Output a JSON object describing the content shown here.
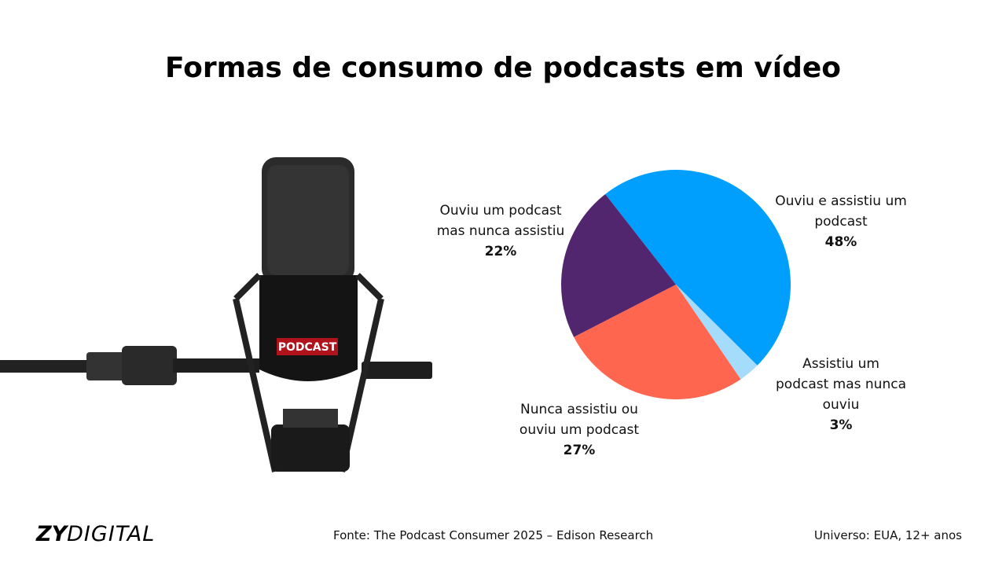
{
  "chart_data": {
    "type": "pie",
    "title": "Formas de consumo de podcasts em vídeo",
    "categories": [
      "Ouviu e assistiu um podcast",
      "Assistiu um podcast mas nunca ouviu",
      "Nunca assistiu ou ouviu um podcast",
      "Ouviu um podcast mas nunca assistiu"
    ],
    "values": [
      48,
      3,
      27,
      22
    ],
    "value_labels": [
      "48%",
      "3%",
      "27%",
      "22%"
    ],
    "colors": [
      "#009ffd",
      "#a6dcfb",
      "#ff6650",
      "#51266f"
    ]
  },
  "image": {
    "mic_label": "PODCAST"
  },
  "footer": {
    "logo_bold": "ZY",
    "logo_light": "DIGITAL",
    "source": "Fonte: The Podcast Consumer 2025 – Edison Research",
    "universe": "Universo: EUA, 12+ anos"
  }
}
